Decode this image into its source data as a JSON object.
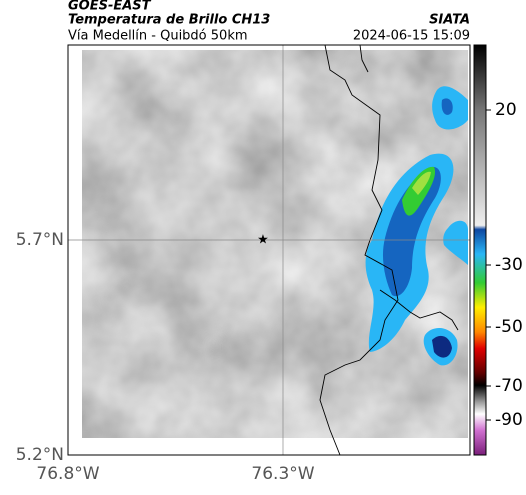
{
  "header": {
    "product": "GOES-EAST",
    "title": "Temperatura de Brillo CH13",
    "source": "SIATA",
    "route": "Vía Medellín - Quibdó 50km",
    "timestamp": "2024-06-15 15:09"
  },
  "lat_labels": [
    "5.7°N",
    "5.2°N"
  ],
  "lon_labels": [
    "76.8°W",
    "76.3°W"
  ],
  "colorbar": {
    "ticks": [
      20,
      -30,
      -50,
      -70,
      -90
    ]
  }
}
